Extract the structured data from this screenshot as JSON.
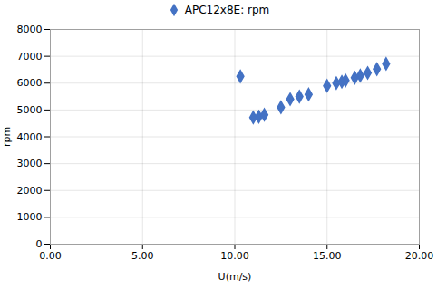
{
  "chart_data": {
    "type": "scatter",
    "x": [
      10.3,
      11.0,
      11.3,
      11.6,
      12.5,
      13.0,
      13.5,
      14.0,
      15.0,
      15.5,
      15.8,
      16.0,
      16.5,
      16.8,
      17.2,
      17.7,
      18.2
    ],
    "series": [
      {
        "name": "APC12x8E: rpm",
        "color": "#4472c4",
        "marker": "diamond",
        "values": [
          6250,
          4720,
          4750,
          4820,
          5100,
          5400,
          5500,
          5580,
          5900,
          6000,
          6050,
          6100,
          6200,
          6280,
          6380,
          6520,
          6720
        ]
      }
    ],
    "xlabel": "U(m/s)",
    "ylabel": "rpm",
    "xlim": [
      0.0,
      20.0
    ],
    "ylim": [
      0,
      8000
    ],
    "xticks": [
      {
        "value": 0.0,
        "label": "0.00"
      },
      {
        "value": 5.0,
        "label": "5.00"
      },
      {
        "value": 10.0,
        "label": "10.00"
      },
      {
        "value": 15.0,
        "label": "15.00"
      },
      {
        "value": 20.0,
        "label": "20.00"
      }
    ],
    "yticks": [
      0,
      1000,
      2000,
      3000,
      4000,
      5000,
      6000,
      7000,
      8000
    ],
    "grid": true,
    "legend": "top"
  }
}
